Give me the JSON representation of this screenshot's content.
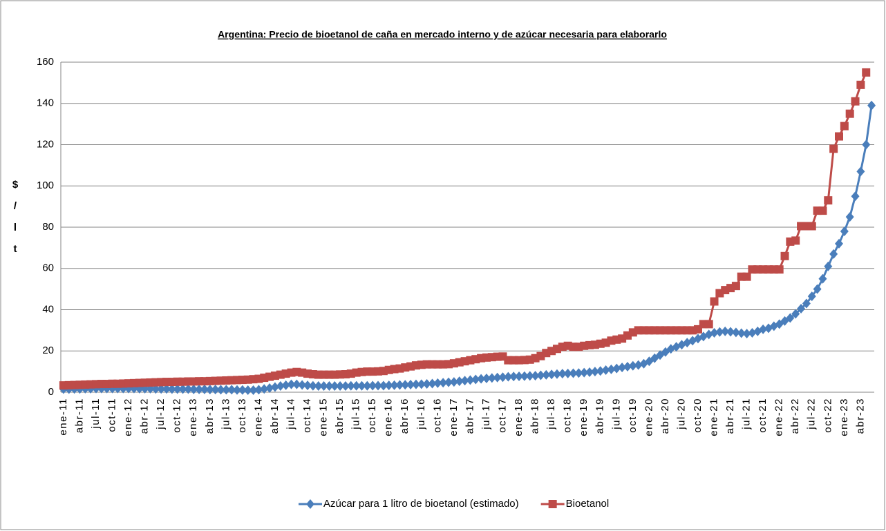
{
  "chart_data": {
    "type": "line",
    "title": "Argentina: Precio de bioetanol de caña en mercado interno y de azúcar necesaria para elaborarlo",
    "y_label": [
      "$",
      "/",
      "l",
      "t"
    ],
    "categories": [
      "ene-11",
      null,
      null,
      "abr-11",
      null,
      null,
      "jul-11",
      null,
      null,
      "oct-11",
      null,
      null,
      "ene-12",
      null,
      null,
      "abr-12",
      null,
      null,
      "jul-12",
      null,
      null,
      "oct-12",
      null,
      null,
      "ene-13",
      null,
      null,
      "abr-13",
      null,
      null,
      "jul-13",
      null,
      null,
      "oct-13",
      null,
      null,
      "ene-14",
      null,
      null,
      "abr-14",
      null,
      null,
      "jul-14",
      null,
      null,
      "oct-14",
      null,
      null,
      "ene-15",
      null,
      null,
      "abr-15",
      null,
      null,
      "jul-15",
      null,
      null,
      "oct-15",
      null,
      null,
      "ene-16",
      null,
      null,
      "abr-16",
      null,
      null,
      "jul-16",
      null,
      null,
      "oct-16",
      null,
      null,
      "ene-17",
      null,
      null,
      "abr-17",
      null,
      null,
      "jul-17",
      null,
      null,
      "oct-17",
      null,
      null,
      "ene-18",
      null,
      null,
      "abr-18",
      null,
      null,
      "jul-18",
      null,
      null,
      "oct-18",
      null,
      null,
      "ene-19",
      null,
      null,
      "abr-19",
      null,
      null,
      "jul-19",
      null,
      null,
      "oct-19",
      null,
      null,
      "ene-20",
      null,
      null,
      "abr-20",
      null,
      null,
      "jul-20",
      null,
      null,
      "oct-20",
      null,
      null,
      "ene-21",
      null,
      null,
      "abr-21",
      null,
      null,
      "jul-21",
      null,
      null,
      "oct-21",
      null,
      null,
      "ene-22",
      null,
      null,
      "abr-22",
      null,
      null,
      "jul-22",
      null,
      null,
      "oct-22",
      null,
      null,
      "ene-23",
      null,
      null,
      "abr-23",
      null,
      null
    ],
    "series": [
      {
        "name": "Azúcar para 1 litro de bioetanol (estimado)",
        "color": "#4a7ebb",
        "marker": "diamond",
        "values": [
          1.5,
          1.5,
          1.6,
          1.6,
          1.7,
          1.7,
          1.8,
          1.8,
          1.8,
          1.8,
          1.8,
          1.8,
          1.8,
          1.8,
          1.7,
          1.7,
          1.7,
          1.6,
          1.6,
          1.6,
          1.5,
          1.5,
          1.5,
          1.5,
          1.4,
          1.4,
          1.4,
          1.3,
          1.3,
          1.2,
          1.2,
          1.2,
          1.1,
          1.1,
          1.0,
          1.0,
          1.2,
          1.6,
          2.0,
          2.5,
          3.0,
          3.4,
          3.8,
          3.8,
          3.5,
          3.3,
          3.1,
          3.0,
          3.0,
          3.0,
          3.0,
          3.0,
          3.0,
          3.1,
          3.1,
          3.1,
          3.1,
          3.2,
          3.2,
          3.2,
          3.3,
          3.4,
          3.5,
          3.6,
          3.7,
          3.8,
          3.9,
          4.0,
          4.2,
          4.4,
          4.6,
          4.8,
          5.0,
          5.3,
          5.6,
          5.9,
          6.2,
          6.5,
          6.7,
          6.9,
          7.1,
          7.3,
          7.5,
          7.6,
          7.7,
          7.8,
          7.9,
          8.0,
          8.2,
          8.4,
          8.6,
          8.8,
          9.0,
          9.1,
          9.2,
          9.3,
          9.5,
          9.7,
          10.0,
          10.3,
          10.7,
          11.1,
          11.5,
          12.0,
          12.4,
          12.8,
          13.2,
          13.8,
          15.0,
          16.5,
          18.0,
          19.5,
          21.0,
          22.0,
          23.0,
          24.0,
          25.0,
          26.0,
          27.0,
          28.0,
          28.8,
          29.2,
          29.5,
          29.3,
          29.0,
          28.6,
          28.4,
          28.8,
          29.5,
          30.5,
          31.0,
          32.0,
          33.0,
          34.5,
          36.0,
          38.0,
          40.5,
          43.0,
          46.5,
          50.0,
          55.0,
          61.0,
          67.0,
          72.0,
          78.0,
          85.0,
          95.0,
          107.0,
          120.0,
          139.0
        ]
      },
      {
        "name": "Bioetanol",
        "color": "#be4b48",
        "marker": "square",
        "values": [
          3.3,
          3.4,
          3.5,
          3.6,
          3.7,
          3.8,
          3.9,
          4.0,
          4.0,
          4.1,
          4.1,
          4.2,
          4.3,
          4.4,
          4.5,
          4.6,
          4.7,
          4.8,
          4.9,
          5.0,
          5.0,
          5.1,
          5.1,
          5.2,
          5.2,
          5.3,
          5.3,
          5.4,
          5.5,
          5.6,
          5.7,
          5.8,
          5.9,
          6.0,
          6.1,
          6.3,
          6.5,
          7.0,
          7.5,
          8.0,
          8.5,
          9.0,
          9.5,
          9.8,
          9.5,
          9.0,
          8.7,
          8.5,
          8.5,
          8.5,
          8.5,
          8.6,
          8.7,
          9.0,
          9.5,
          9.8,
          10.0,
          10.0,
          10.1,
          10.3,
          10.8,
          11.2,
          11.5,
          12.0,
          12.5,
          13.0,
          13.3,
          13.5,
          13.5,
          13.5,
          13.5,
          13.6,
          14.0,
          14.5,
          15.0,
          15.5,
          16.0,
          16.5,
          16.8,
          17.0,
          17.2,
          17.3,
          15.5,
          15.5,
          15.5,
          15.6,
          15.8,
          16.5,
          17.5,
          19.0,
          20.0,
          21.0,
          22.0,
          22.5,
          22.0,
          22.0,
          22.5,
          22.8,
          23.0,
          23.5,
          24.0,
          25.0,
          25.5,
          26.0,
          27.5,
          29.0,
          30.0,
          30.0,
          30.0,
          30.0,
          30.0,
          30.0,
          30.0,
          30.0,
          30.0,
          30.0,
          30.0,
          30.5,
          33.0,
          33.0,
          44.0,
          48.0,
          49.5,
          50.5,
          51.5,
          56.0,
          56.0,
          59.5,
          59.5,
          59.5,
          59.5,
          59.5,
          59.5,
          66.0,
          73.0,
          73.5,
          80.5,
          80.5,
          80.5,
          88.0,
          88.0,
          93.0,
          118.0,
          124.0,
          129.0,
          135.0,
          141.0,
          149.0,
          155.0,
          null
        ]
      }
    ],
    "ylim": [
      0,
      160
    ],
    "yticks": [
      0,
      20,
      40,
      60,
      80,
      100,
      120,
      140,
      160
    ],
    "grid": true,
    "legend": "bottom"
  }
}
